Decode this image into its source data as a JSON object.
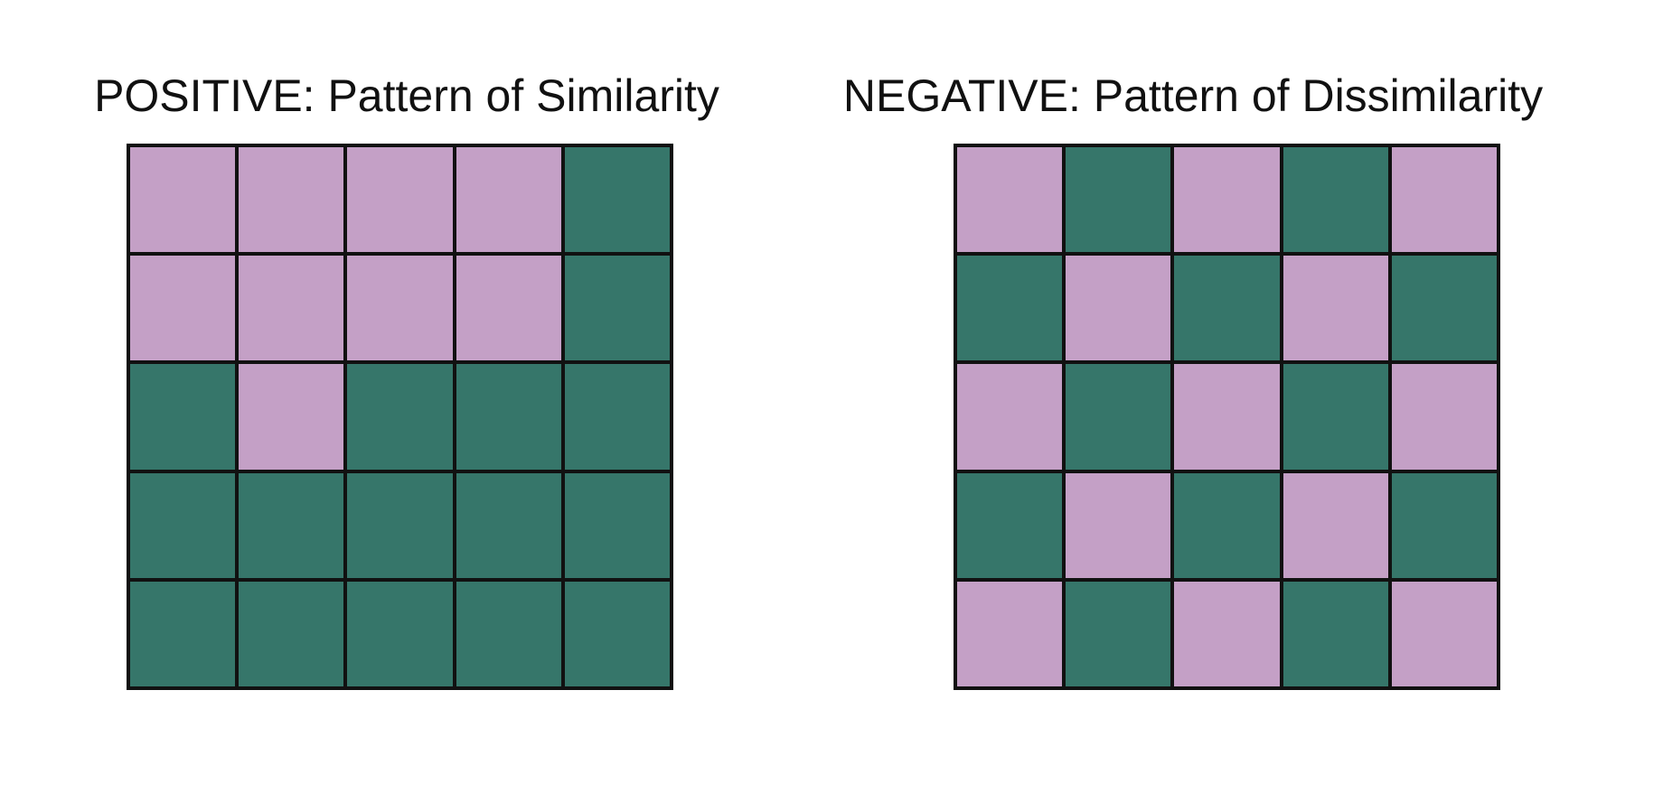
{
  "colors": {
    "pink": "#c4a0c6",
    "green": "#36766a",
    "border": "#111111"
  },
  "panels": {
    "positive": {
      "title": "POSITIVE: Pattern of Similarity",
      "cells": [
        [
          "pink",
          "pink",
          "pink",
          "pink",
          "green"
        ],
        [
          "pink",
          "pink",
          "pink",
          "pink",
          "green"
        ],
        [
          "green",
          "pink",
          "green",
          "green",
          "green"
        ],
        [
          "green",
          "green",
          "green",
          "green",
          "green"
        ],
        [
          "green",
          "green",
          "green",
          "green",
          "green"
        ]
      ]
    },
    "negative": {
      "title": "NEGATIVE: Pattern of Dissimilarity",
      "cells": [
        [
          "pink",
          "green",
          "pink",
          "green",
          "pink"
        ],
        [
          "green",
          "pink",
          "green",
          "pink",
          "green"
        ],
        [
          "pink",
          "green",
          "pink",
          "green",
          "pink"
        ],
        [
          "green",
          "pink",
          "green",
          "pink",
          "green"
        ],
        [
          "pink",
          "green",
          "pink",
          "green",
          "pink"
        ]
      ]
    }
  }
}
